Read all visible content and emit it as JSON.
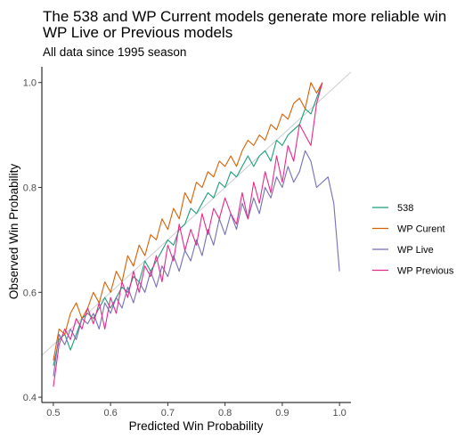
{
  "chart_data": {
    "type": "line",
    "title": "The 538 and WP Current models generate more reliable win",
    "title_line2": "WP Live or Previous models",
    "subtitle": "All data since 1995 season",
    "xlabel": "Predicted Win Probability",
    "ylabel": "Observed Win Probability",
    "xlim": [
      0.48,
      1.02
    ],
    "ylim": [
      0.39,
      1.03
    ],
    "xticks": [
      "0.5",
      "0.6",
      "0.7",
      "0.8",
      "0.9",
      "1.0"
    ],
    "yticks": [
      "0.4",
      "0.6",
      "0.8",
      "1.0"
    ],
    "grid": false,
    "legend_position": "right",
    "reference_line": {
      "from": [
        0.48,
        0.48
      ],
      "to": [
        1.02,
        1.02
      ],
      "color": "#cccccc"
    },
    "series": [
      {
        "name": "538",
        "color": "#1b9e77",
        "x": [
          0.5,
          0.51,
          0.52,
          0.53,
          0.54,
          0.55,
          0.56,
          0.57,
          0.58,
          0.59,
          0.6,
          0.61,
          0.62,
          0.63,
          0.64,
          0.65,
          0.66,
          0.67,
          0.68,
          0.69,
          0.7,
          0.71,
          0.72,
          0.73,
          0.74,
          0.75,
          0.76,
          0.77,
          0.78,
          0.79,
          0.8,
          0.81,
          0.82,
          0.83,
          0.84,
          0.85,
          0.86,
          0.87,
          0.88,
          0.89,
          0.9,
          0.91,
          0.92,
          0.93,
          0.94,
          0.95,
          0.96,
          0.97
        ],
        "y": [
          0.46,
          0.51,
          0.52,
          0.49,
          0.52,
          0.55,
          0.56,
          0.55,
          0.57,
          0.59,
          0.57,
          0.59,
          0.61,
          0.6,
          0.63,
          0.62,
          0.66,
          0.64,
          0.66,
          0.68,
          0.7,
          0.69,
          0.72,
          0.73,
          0.76,
          0.75,
          0.77,
          0.79,
          0.78,
          0.81,
          0.8,
          0.83,
          0.82,
          0.84,
          0.86,
          0.84,
          0.86,
          0.87,
          0.85,
          0.89,
          0.88,
          0.9,
          0.91,
          0.92,
          0.95,
          0.94,
          0.97,
          1.0
        ]
      },
      {
        "name": "WP Curent",
        "color": "#d95f02",
        "x": [
          0.5,
          0.51,
          0.52,
          0.53,
          0.54,
          0.55,
          0.56,
          0.57,
          0.58,
          0.59,
          0.6,
          0.61,
          0.62,
          0.63,
          0.64,
          0.65,
          0.66,
          0.67,
          0.68,
          0.69,
          0.7,
          0.71,
          0.72,
          0.73,
          0.74,
          0.75,
          0.76,
          0.77,
          0.78,
          0.79,
          0.8,
          0.81,
          0.82,
          0.83,
          0.84,
          0.85,
          0.86,
          0.87,
          0.88,
          0.89,
          0.9,
          0.91,
          0.92,
          0.93,
          0.94,
          0.95,
          0.96,
          0.97
        ],
        "y": [
          0.47,
          0.53,
          0.52,
          0.56,
          0.58,
          0.55,
          0.57,
          0.6,
          0.58,
          0.62,
          0.6,
          0.64,
          0.62,
          0.67,
          0.65,
          0.69,
          0.67,
          0.71,
          0.7,
          0.74,
          0.72,
          0.76,
          0.74,
          0.79,
          0.77,
          0.81,
          0.8,
          0.83,
          0.82,
          0.85,
          0.84,
          0.86,
          0.84,
          0.87,
          0.89,
          0.88,
          0.9,
          0.89,
          0.92,
          0.91,
          0.94,
          0.93,
          0.96,
          0.97,
          0.95,
          1.0,
          0.98,
          1.0
        ]
      },
      {
        "name": "WP Live",
        "color": "#7570b3",
        "x": [
          0.5,
          0.51,
          0.52,
          0.53,
          0.54,
          0.55,
          0.56,
          0.57,
          0.58,
          0.59,
          0.6,
          0.61,
          0.62,
          0.63,
          0.64,
          0.65,
          0.66,
          0.67,
          0.68,
          0.69,
          0.7,
          0.71,
          0.72,
          0.73,
          0.74,
          0.75,
          0.76,
          0.77,
          0.78,
          0.79,
          0.8,
          0.81,
          0.82,
          0.83,
          0.84,
          0.85,
          0.86,
          0.87,
          0.88,
          0.89,
          0.9,
          0.91,
          0.92,
          0.93,
          0.94,
          0.95,
          0.96,
          0.97,
          0.98,
          0.99,
          1.0
        ],
        "y": [
          0.44,
          0.52,
          0.5,
          0.53,
          0.51,
          0.55,
          0.54,
          0.56,
          0.53,
          0.58,
          0.56,
          0.59,
          0.57,
          0.61,
          0.58,
          0.62,
          0.6,
          0.64,
          0.61,
          0.65,
          0.63,
          0.67,
          0.64,
          0.68,
          0.66,
          0.7,
          0.67,
          0.72,
          0.69,
          0.74,
          0.71,
          0.75,
          0.72,
          0.77,
          0.74,
          0.78,
          0.75,
          0.8,
          0.78,
          0.82,
          0.8,
          0.84,
          0.81,
          0.83,
          0.87,
          0.85,
          0.8,
          0.81,
          0.82,
          0.77,
          0.64
        ]
      },
      {
        "name": "WP Previous",
        "color": "#e7298a",
        "x": [
          0.5,
          0.51,
          0.52,
          0.53,
          0.54,
          0.55,
          0.56,
          0.57,
          0.58,
          0.59,
          0.6,
          0.61,
          0.62,
          0.63,
          0.64,
          0.65,
          0.66,
          0.67,
          0.68,
          0.69,
          0.7,
          0.71,
          0.72,
          0.73,
          0.74,
          0.75,
          0.76,
          0.77,
          0.78,
          0.79,
          0.8,
          0.81,
          0.82,
          0.83,
          0.84,
          0.85,
          0.86,
          0.87,
          0.88,
          0.89,
          0.9,
          0.91,
          0.92,
          0.93,
          0.94,
          0.95,
          0.96,
          0.97
        ],
        "y": [
          0.42,
          0.5,
          0.53,
          0.51,
          0.55,
          0.53,
          0.57,
          0.54,
          0.58,
          0.53,
          0.59,
          0.56,
          0.62,
          0.59,
          0.64,
          0.6,
          0.65,
          0.63,
          0.67,
          0.62,
          0.69,
          0.66,
          0.73,
          0.68,
          0.72,
          0.69,
          0.75,
          0.71,
          0.76,
          0.74,
          0.78,
          0.75,
          0.73,
          0.79,
          0.74,
          0.81,
          0.77,
          0.83,
          0.79,
          0.86,
          0.81,
          0.88,
          0.85,
          0.92,
          0.9,
          0.88,
          0.96,
          1.0
        ]
      }
    ]
  }
}
